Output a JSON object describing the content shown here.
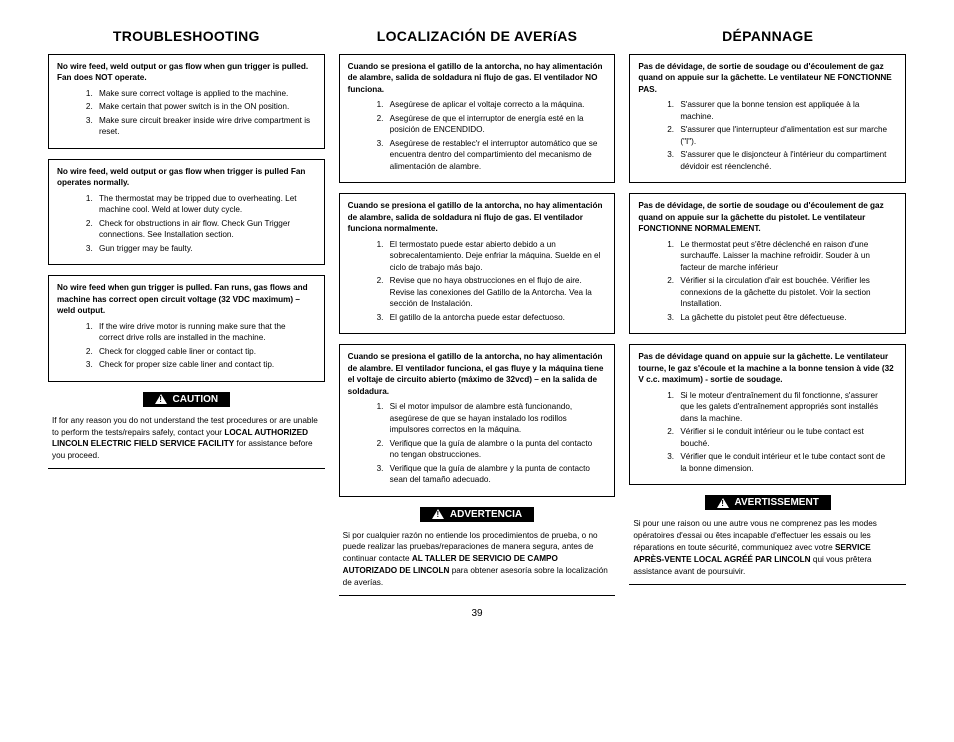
{
  "pageNumber": "39",
  "columns": [
    {
      "heading": "TROUBLESHOOTING",
      "boxes": [
        {
          "title": "No wire feed, weld output or gas flow when gun trigger is pulled. Fan does NOT operate.",
          "items": [
            "Make sure correct voltage is applied to the machine.",
            "Make certain that power switch is in the ON position.",
            "Make sure circuit breaker inside wire drive compartment is reset."
          ]
        },
        {
          "title": "No wire feed, weld output or gas flow when trigger is pulled Fan operates normally.",
          "items": [
            "The thermostat may be tripped due to overheating. Let machine cool. Weld at lower duty cycle.",
            "Check for obstructions in air flow. Check Gun Trigger connections. See Installation section.",
            "Gun trigger may be faulty."
          ]
        },
        {
          "title": "No wire feed when gun trigger is pulled. Fan runs, gas flows and machine has correct open circuit voltage (32 VDC maximum) – weld output.",
          "items": [
            "If the wire drive motor is running make sure that the correct drive rolls are installed in the machine.",
            "Check for clogged cable liner or contact tip.",
            "Check for proper size cable liner and contact tip."
          ]
        }
      ],
      "warn": {
        "label": "CAUTION",
        "pre": "If for any reason you do not understand the test procedures or are unable to perform the tests/repairs safely, contact your ",
        "bold": "LOCAL AUTHORIZED LINCOLN ELECTRIC FIELD SERVICE FACILITY",
        "post": " for assistance before you proceed."
      }
    },
    {
      "heading": "LOCALIZACIÓN DE AVERíAS",
      "boxes": [
        {
          "title": "Cuando se presiona el gatillo de la antorcha, no hay alimentación de alambre, salida de soldadura ni flujo de gas.  El ventilador NO funciona.",
          "items": [
            "Asegúrese de aplicar el voltaje correcto a la máquina.",
            "Asegúrese de que el interruptor de energía esté en la posición de ENCENDIDO.",
            "Asegúrese de restablec'r el interruptor automático que se encuentra dentro del compartimiento del mecanismo de alimentación de alambre."
          ]
        },
        {
          "title": "Cuando se presiona el gatillo de la antorcha, no hay alimentación de alambre, salida de soldadura ni flujo de gas.  El ventilador funciona normalmente.",
          "items": [
            "El termostato puede estar abierto debido a un sobrecalentamiento.  Deje enfriar la máquina. Suelde en el ciclo de trabajo más bajo.",
            "Revise que no haya obstrucciones en el flujo de aire. Revise las conexiones del Gatillo de la Antorcha.  Vea la sección de Instalación.",
            "El gatillo de la antorcha puede estar defectuoso."
          ]
        },
        {
          "title": "Cuando se presiona el gatillo de la antorcha, no hay alimentación de alambre. El ventilador funciona, el gas fluye y la máquina tiene el voltaje de circuito abierto (máximo de 32vcd) – en la salida de soldadura.",
          "items": [
            "Si el motor impulsor de alambre està funcionando, asegúrese de que se hayan instalado los rodillos impulsores correctos en la máquina.",
            "Verifique que la guía de alambre o la punta del contacto no tengan obstrucciones.",
            "Verifique que la guía de alambre y la punta de contacto sean del tamaño adecuado."
          ]
        }
      ],
      "warn": {
        "label": "ADVERTENCIA",
        "pre": "Si por cualquier razón no entiende los procedimientos de prueba, o no puede realizar las pruebas/reparaciones de manera segura, antes de continuar contacte ",
        "bold": "AL TALLER DE SERVICIO DE CAMPO AUTORIZADO DE LINCOLN",
        "post": " para obtener asesoría sobre la localización de averías."
      }
    },
    {
      "heading": "DÉPANNAGE",
      "boxes": [
        {
          "title": "Pas de dévidage, de sortie de soudage ou d'écoulement de gaz quand on appuie sur la gâchette.  Le ventilateur NE FONCTIONNE PAS.",
          "items": [
            "S'assurer que la bonne tension est appliquée à la machine.",
            "S'assurer que l'interrupteur d'alimentation est sur marche (\"I\").",
            "S'assurer que le disjoncteur à l'intérieur du compartiment dévidoir est réenclenché."
          ]
        },
        {
          "title": "Pas de dévidage, de sortie de soudage ou d'écoulement de gaz quand on appuie sur la gâchette du pistolet.  Le ventilateur FONCTIONNE NORMALEMENT.",
          "items": [
            "Le thermostat peut s'être déclenché en raison d'une surchauffe.  Laisser la machine refroidir. Souder à un facteur de marche inférieur",
            "Vérifier si la circulation d'air est bouchée. Vérifier les connexions de la gâchette du pistolet.  Voir la section Installation.",
            "La gâchette du pistolet peut être défectueuse."
          ]
        },
        {
          "title": "Pas de dévidage quand on appuie sur la gâchette.  Le ventilateur tourne, le gaz s'écoule et la machine a la bonne tension à vide (32 V c.c. maximum) - sortie de soudage.",
          "items": [
            "Si le moteur d'entraînement du fil fonctionne, s'assurer que les galets d'entraînement appropriés sont installés dans la machine.",
            "Vérifier si le conduit intérieur ou le tube contact est bouché.",
            "Vérifier que le conduit intérieur et le tube contact sont de la bonne dimension."
          ]
        }
      ],
      "warn": {
        "label": "AVERTISSEMENT",
        "pre": "Si pour une raison ou une autre vous ne comprenez pas les modes opératoires d'essai ou êtes incapable d'effectuer les essais ou les réparations en toute sécurité, communiquez avec votre ",
        "bold": "SERVICE APRÈS-VENTE LOCAL AGRÉÉ PAR LINCOLN",
        "post": " qui vous prêtera assistance avant de poursuivir."
      }
    }
  ]
}
